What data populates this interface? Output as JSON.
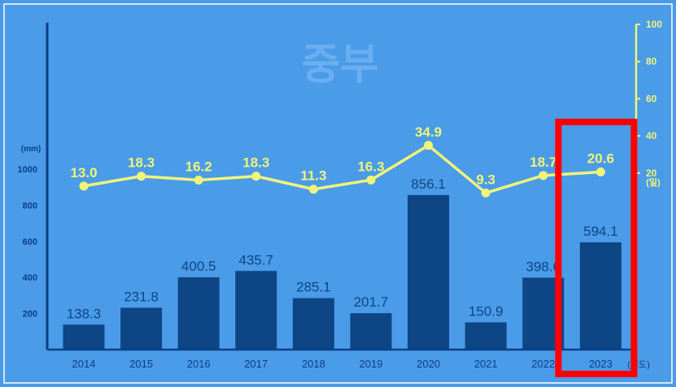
{
  "chart_data": {
    "type": "bar",
    "title": "중부",
    "categories": [
      "2014",
      "2015",
      "2016",
      "2017",
      "2018",
      "2019",
      "2020",
      "2021",
      "2022",
      "2023"
    ],
    "x_unit": "(년도)",
    "series": [
      {
        "kind": "bar",
        "axis": "left",
        "values": [
          138.3,
          231.8,
          400.5,
          435.7,
          285.1,
          201.7,
          856.1,
          150.9,
          398.6,
          594.1
        ],
        "value_labels": [
          "138.3",
          "231.8",
          "400.5",
          "435.7",
          "285.1",
          "201.7",
          "856.1",
          "150.9",
          "398.6",
          "594.1"
        ]
      },
      {
        "kind": "line",
        "axis": "right",
        "values": [
          13.0,
          18.3,
          16.2,
          18.3,
          11.3,
          16.3,
          34.9,
          9.3,
          18.7,
          20.6
        ],
        "value_labels": [
          "13.0",
          "18.3",
          "16.2",
          "18.3",
          "11.3",
          "16.3",
          "34.9",
          "9.3",
          "18.7",
          "20.6"
        ]
      }
    ],
    "y_left": {
      "unit": "(mm)",
      "ticks": [
        "200",
        "400",
        "600",
        "800",
        "1000"
      ],
      "range": [
        0,
        1000
      ]
    },
    "y_right": {
      "unit": "(일)",
      "ticks": [
        "20",
        "40",
        "60",
        "80",
        "100"
      ],
      "range": [
        -75,
        100
      ]
    },
    "highlight": {
      "category": "2023",
      "shape": "red rectangle"
    },
    "colors": {
      "background": "#4a9be8",
      "bars": "#0e4584",
      "line": "#f0f57a",
      "left_axis": "#0b3f86",
      "highlight": "#ff0000",
      "title": "#6aaef0"
    },
    "grid": false,
    "legend": "none"
  }
}
